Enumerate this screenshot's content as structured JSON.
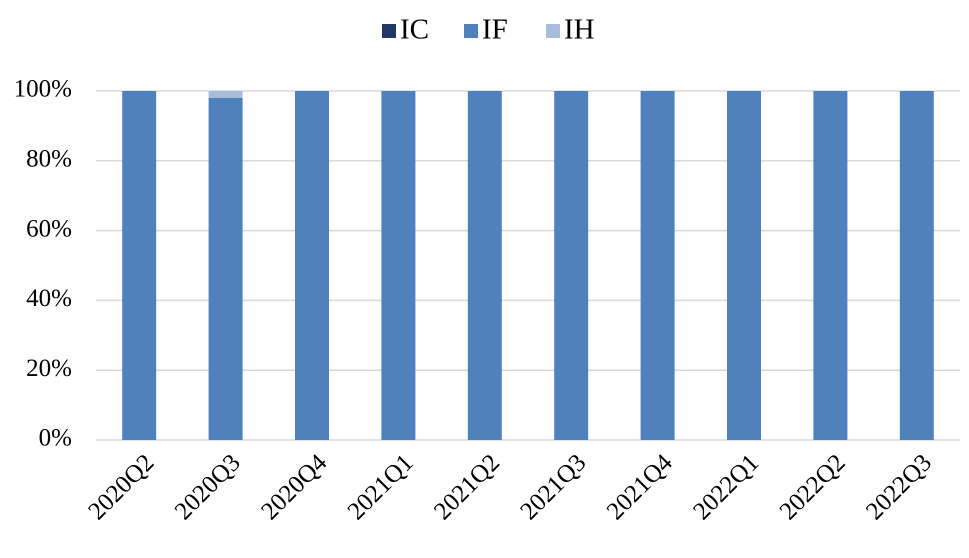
{
  "chart_data": {
    "type": "stacked_bar",
    "categories": [
      "2020Q2",
      "2020Q3",
      "2020Q4",
      "2021Q1",
      "2021Q2",
      "2021Q3",
      "2021Q4",
      "2022Q1",
      "2022Q2",
      "2022Q3"
    ],
    "series": [
      {
        "name": "IC",
        "color": "#203864",
        "values": [
          0,
          0,
          0,
          0,
          0,
          0,
          0,
          0,
          0,
          0
        ]
      },
      {
        "name": "IF",
        "color": "#4f81bd",
        "values": [
          100,
          98,
          100,
          100,
          100,
          100,
          100,
          100,
          100,
          100
        ]
      },
      {
        "name": "IH",
        "color": "#a9bcdc",
        "values": [
          0,
          2,
          0,
          0,
          0,
          0,
          0,
          0,
          0,
          0
        ]
      }
    ],
    "ylim": [
      0,
      100
    ],
    "yticks": [
      {
        "value": 0,
        "label": "0%"
      },
      {
        "value": 20,
        "label": "20%"
      },
      {
        "value": 40,
        "label": "40%"
      },
      {
        "value": 60,
        "label": "60%"
      },
      {
        "value": 80,
        "label": "80%"
      },
      {
        "value": 100,
        "label": "100%"
      }
    ],
    "grid": true,
    "legend": "top"
  }
}
